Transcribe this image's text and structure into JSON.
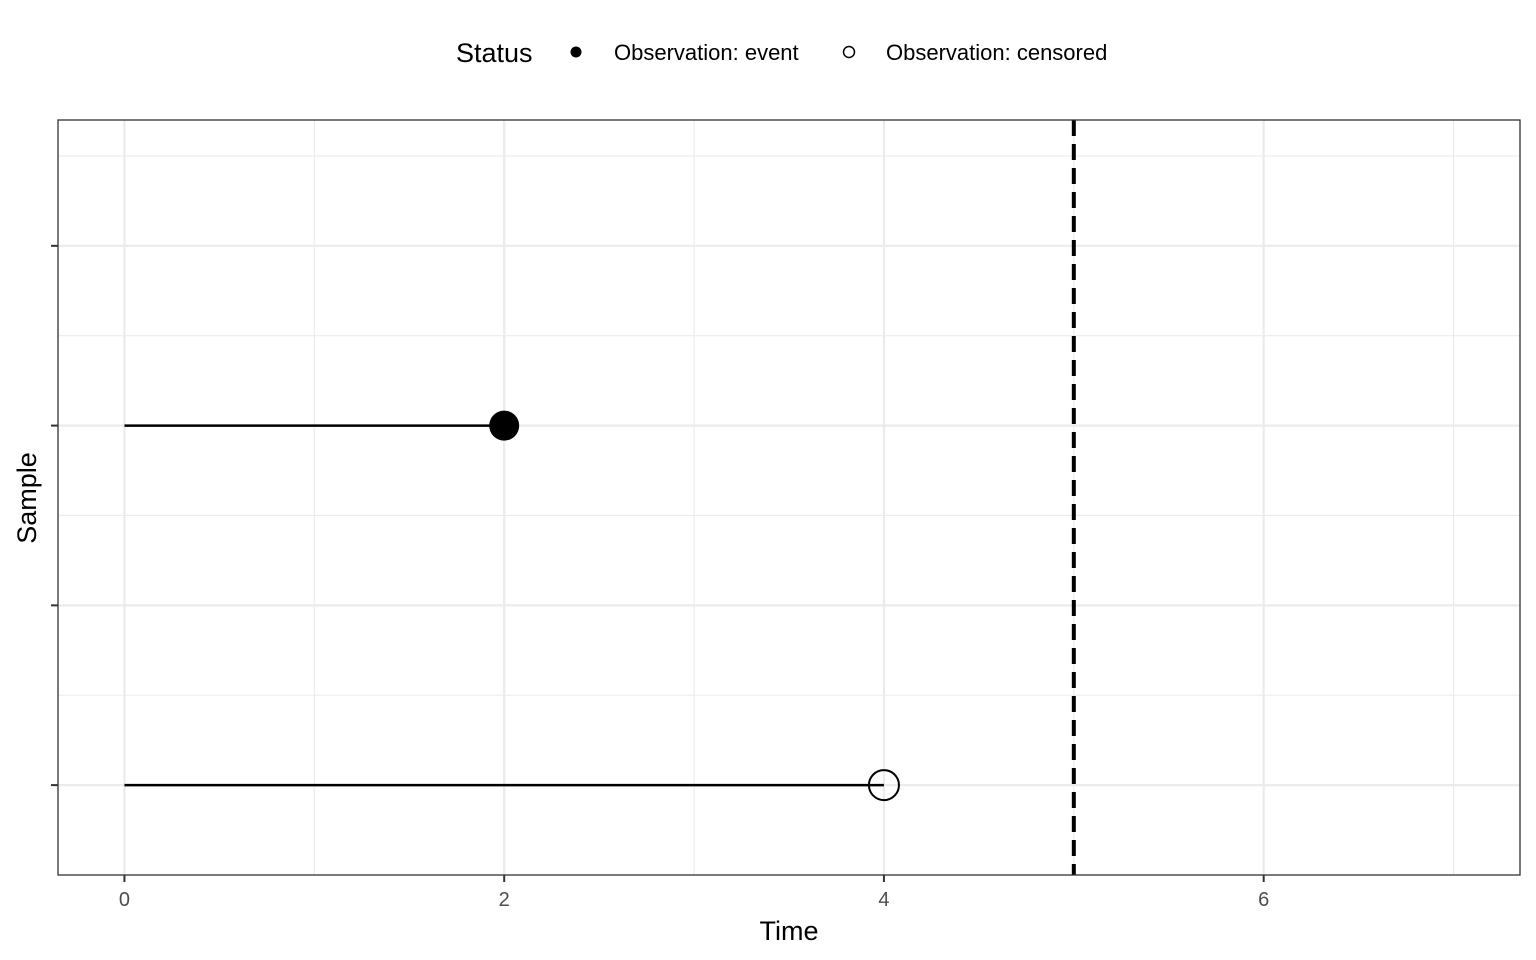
{
  "chart_data": {
    "type": "timeline",
    "xlabel": "Time",
    "ylabel": "Sample",
    "xlim": [
      -0.35,
      7.35
    ],
    "ylim": [
      0.5,
      4.7
    ],
    "x_ticks": [
      0,
      2,
      4,
      6
    ],
    "y_ticks": [
      1,
      2,
      3,
      4
    ],
    "grid": true,
    "reference_line": {
      "x": 5,
      "style": "dashed"
    },
    "legend": {
      "position": "top",
      "title": "Status",
      "entries": [
        {
          "label": "Observation: event",
          "marker": "filled-circle"
        },
        {
          "label": "Observation: censored",
          "marker": "open-circle"
        }
      ]
    },
    "segments": [
      {
        "y": 3.0,
        "x_start": 0,
        "x_end": 2,
        "status": "event"
      },
      {
        "y": 1.0,
        "x_start": 0,
        "x_end": 4,
        "status": "censored"
      }
    ],
    "colors": {
      "line": "#000000",
      "grid": "#ebebeb",
      "panel_border": "#333333"
    }
  }
}
